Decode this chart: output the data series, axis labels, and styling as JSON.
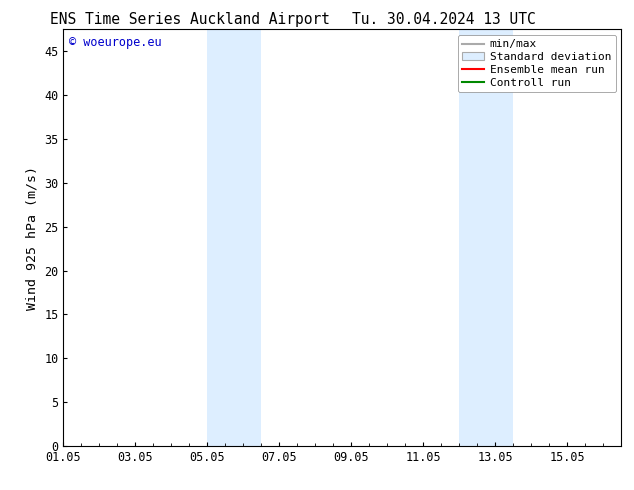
{
  "title_left": "ENS Time Series Auckland Airport",
  "title_right": "Tu. 30.04.2024 13 UTC",
  "ylabel": "Wind 925 hPa (m/s)",
  "watermark": "© woeurope.eu",
  "watermark_color": "#0000cc",
  "xlim_start": 0,
  "xlim_end": 15.5,
  "ylim": [
    0,
    47.5
  ],
  "yticks": [
    0,
    5,
    10,
    15,
    20,
    25,
    30,
    35,
    40,
    45
  ],
  "xtick_labels": [
    "01.05",
    "03.05",
    "05.05",
    "07.05",
    "09.05",
    "11.05",
    "13.05",
    "15.05"
  ],
  "xtick_positions": [
    0,
    2,
    4,
    6,
    8,
    10,
    12,
    14
  ],
  "background_color": "#ffffff",
  "plot_bg_color": "#ffffff",
  "shaded_regions": [
    {
      "xmin": 4.0,
      "xmax": 5.5,
      "color": "#ddeeff"
    },
    {
      "xmin": 11.0,
      "xmax": 12.5,
      "color": "#ddeeff"
    }
  ],
  "legend_entries": [
    {
      "label": "min/max",
      "color": "#aaaaaa",
      "lw": 1.5,
      "linestyle": "-",
      "type": "line"
    },
    {
      "label": "Standard deviation",
      "color": "#ddeeff",
      "lw": 6,
      "linestyle": "-",
      "type": "patch"
    },
    {
      "label": "Ensemble mean run",
      "color": "#ff0000",
      "lw": 1.5,
      "linestyle": "-",
      "type": "line"
    },
    {
      "label": "Controll run",
      "color": "#008800",
      "lw": 1.5,
      "linestyle": "-",
      "type": "line"
    }
  ],
  "title_fontsize": 10.5,
  "tick_fontsize": 8.5,
  "label_fontsize": 9.5,
  "watermark_fontsize": 8.5,
  "legend_fontsize": 8
}
